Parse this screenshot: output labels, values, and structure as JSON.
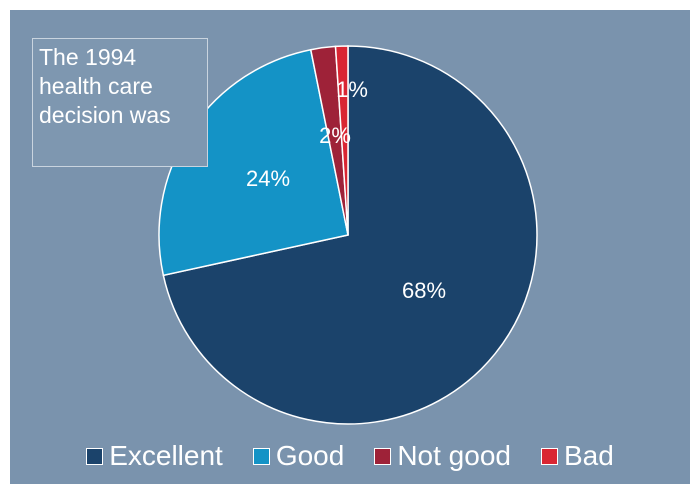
{
  "chart_data": {
    "type": "pie",
    "title": "The 1994 health care decision was",
    "title_lines": [
      "The 1994",
      "health care",
      "decision was"
    ],
    "categories": [
      "Excellent",
      "Good",
      "Not good",
      "Bad"
    ],
    "values": [
      68,
      24,
      2,
      1
    ],
    "labels": [
      "68%",
      "24%",
      "2%",
      "1%"
    ],
    "colors": [
      "#1b436b",
      "#1493c6",
      "#9e2238",
      "#d92633"
    ],
    "legend_position": "bottom"
  },
  "colors": {
    "panel_background": "#7a93ad",
    "slice_border": "#ffffff",
    "text": "#ffffff"
  }
}
